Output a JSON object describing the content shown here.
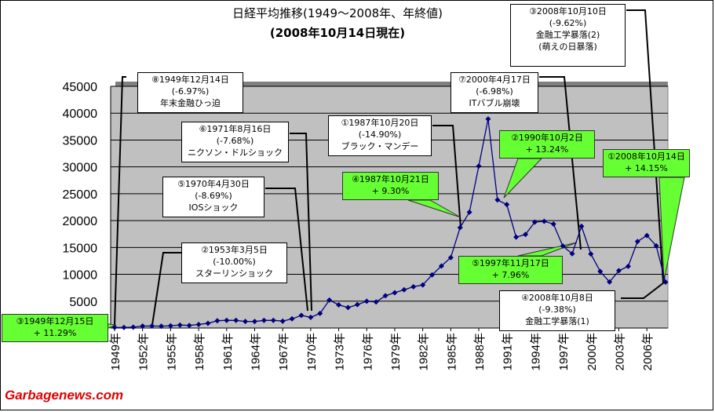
{
  "chart_data": {
    "type": "line",
    "title": "日経平均推移(1949～2008年、年終値)",
    "subtitle": "(2008年10月14日現在)",
    "x_tick_labels": [
      "1949年",
      "1952年",
      "1955年",
      "1958年",
      "1961年",
      "1964年",
      "1967年",
      "1970年",
      "1973年",
      "1976年",
      "1979年",
      "1982年",
      "1985年",
      "1988年",
      "1991年",
      "1994年",
      "1997年",
      "2000年",
      "2003年",
      "2006年"
    ],
    "y_tick_labels": [
      "5000",
      "10000",
      "15000",
      "20000",
      "25000",
      "30000",
      "35000",
      "40000",
      "45000"
    ],
    "ylim": [
      0,
      45000
    ],
    "grid": true,
    "series_color": "#000080",
    "plot_background": "#c0c0c0",
    "x": [
      1949,
      1950,
      1951,
      1952,
      1953,
      1954,
      1955,
      1956,
      1957,
      1958,
      1959,
      1960,
      1961,
      1962,
      1963,
      1964,
      1965,
      1966,
      1967,
      1968,
      1969,
      1970,
      1971,
      1972,
      1973,
      1974,
      1975,
      1976,
      1977,
      1978,
      1979,
      1980,
      1981,
      1982,
      1983,
      1984,
      1985,
      1986,
      1987,
      1988,
      1989,
      1990,
      1991,
      1992,
      1993,
      1994,
      1995,
      1996,
      1997,
      1998,
      1999,
      2000,
      2001,
      2002,
      2003,
      2004,
      2005,
      2006,
      2007,
      2008
    ],
    "values": [
      109,
      102,
      167,
      363,
      378,
      356,
      425,
      550,
      475,
      666,
      874,
      1357,
      1432,
      1420,
      1226,
      1216,
      1418,
      1432,
      1284,
      1715,
      2359,
      1987,
      2714,
      5208,
      4307,
      3817,
      4359,
      4991,
      4866,
      6001,
      6570,
      7116,
      7682,
      8017,
      9894,
      11543,
      13113,
      18701,
      21564,
      30159,
      38916,
      23849,
      22984,
      16925,
      17417,
      19723,
      19868,
      19361,
      15259,
      13842,
      18934,
      13786,
      10543,
      8579,
      10677,
      11489,
      16111,
      17226,
      15308,
      8549
    ]
  },
  "annotations": [
    {
      "lines": [
        "⑧1949年12月14日",
        "(-6.97%)",
        "年末金融ひっ迫"
      ],
      "green": false
    },
    {
      "lines": [
        "⑥1971年8月16日",
        "(-7.68%)",
        "ニクソン・ドルショック"
      ],
      "green": false
    },
    {
      "lines": [
        "⑤1970年4月30日",
        "(-8.69%)",
        "IOSショック"
      ],
      "green": false
    },
    {
      "lines": [
        "②1953年3月5日",
        "(-10.00%)",
        "スターリンショック"
      ],
      "green": false
    },
    {
      "lines": [
        "③1949年12月15日",
        "+ 11.29%"
      ],
      "green": true
    },
    {
      "lines": [
        "①1987年10月20日",
        "(-14.90%)",
        "ブラック・マンデー"
      ],
      "green": false
    },
    {
      "lines": [
        "④1987年10月21日",
        "+ 9.30%"
      ],
      "green": true
    },
    {
      "lines": [
        "⑦2000年4月17日",
        "(-6.98%)",
        "ITバブル崩壊"
      ],
      "green": false
    },
    {
      "lines": [
        "②1990年10月2日",
        "+ 13.24%"
      ],
      "green": true
    },
    {
      "lines": [
        "⑤1997年11月17日",
        "+ 7.96%"
      ],
      "green": true
    },
    {
      "lines": [
        "③2008年10月10日",
        "(-9.62%)",
        "金融工学暴落(2)",
        "(萌えの日暴落)"
      ],
      "green": false
    },
    {
      "lines": [
        "①2008年10月14日",
        "+ 14.15%"
      ],
      "green": true
    },
    {
      "lines": [
        "④2008年10月8日",
        "(-9.38%)",
        "金融工学暴落(1)"
      ],
      "green": false
    }
  ],
  "watermark": "Garbagenews.com"
}
